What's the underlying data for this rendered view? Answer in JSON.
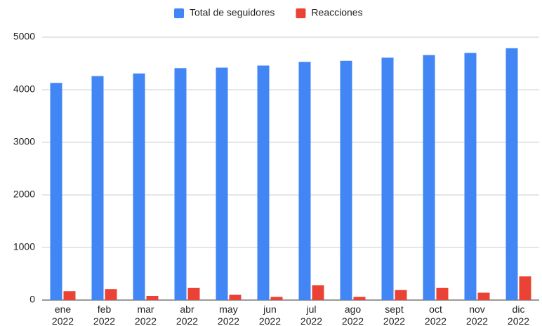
{
  "chart_data": {
    "type": "bar",
    "categories": [
      "ene 2022",
      "feb 2022",
      "mar 2022",
      "abr 2022",
      "may 2022",
      "jun 2022",
      "jul 2022",
      "ago 2022",
      "sept 2022",
      "oct 2022",
      "nov 2022",
      "dic 2022"
    ],
    "series": [
      {
        "name": "Total de seguidores",
        "color": "#4285f4",
        "values": [
          4130,
          4260,
          4310,
          4410,
          4420,
          4460,
          4530,
          4550,
          4610,
          4660,
          4700,
          4790
        ]
      },
      {
        "name": "Reacciones",
        "color": "#ea4335",
        "values": [
          170,
          210,
          80,
          230,
          100,
          60,
          280,
          60,
          190,
          230,
          140,
          450
        ]
      }
    ],
    "ylim": [
      0,
      5000
    ],
    "yticks": [
      0,
      1000,
      2000,
      3000,
      4000,
      5000
    ],
    "grid": true,
    "legend": "top"
  }
}
